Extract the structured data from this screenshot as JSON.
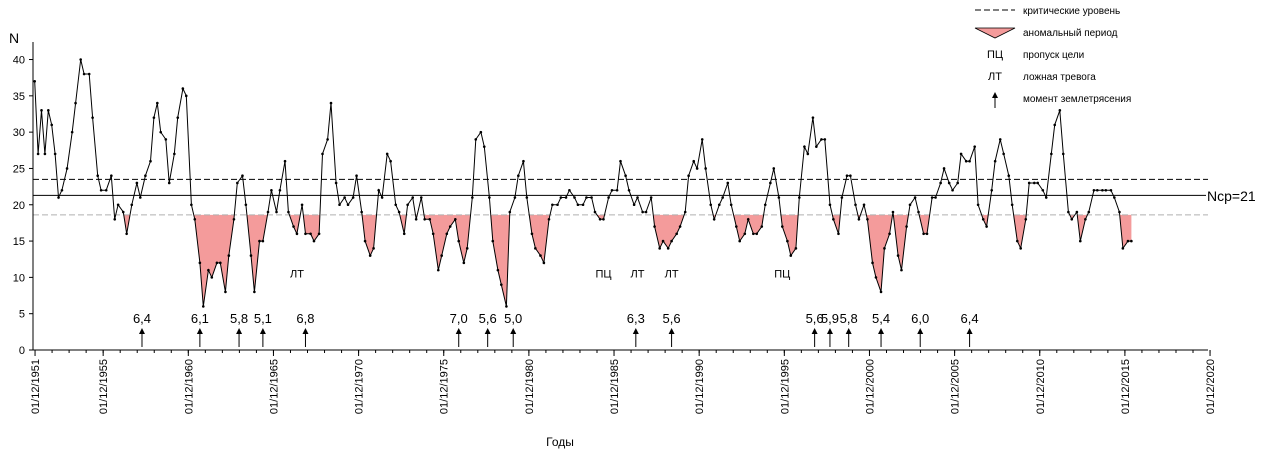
{
  "chart_data": {
    "type": "line",
    "title": "",
    "ylabel": "N",
    "xlabel": "Годы",
    "ylim": [
      0,
      42
    ],
    "yticks": [
      0,
      5,
      10,
      15,
      20,
      25,
      30,
      35,
      40
    ],
    "xlim": [
      1951.8,
      2020.8
    ],
    "xticks": [
      {
        "year": 1951.92,
        "label": "01/12/1951"
      },
      {
        "year": 1955.92,
        "label": "01/12/1955"
      },
      {
        "year": 1960.92,
        "label": "01/12/1960"
      },
      {
        "year": 1965.92,
        "label": "01/12/1965"
      },
      {
        "year": 1970.92,
        "label": "01/12/1970"
      },
      {
        "year": 1975.92,
        "label": "01/12/1975"
      },
      {
        "year": 1980.92,
        "label": "01/12/1980"
      },
      {
        "year": 1985.92,
        "label": "01/12/1985"
      },
      {
        "year": 1990.92,
        "label": "01/12/1990"
      },
      {
        "year": 1995.92,
        "label": "01/12/1995"
      },
      {
        "year": 2000.92,
        "label": "01/12/2000"
      },
      {
        "year": 2005.92,
        "label": "01/12/2005"
      },
      {
        "year": 2010.92,
        "label": "01/12/2010"
      },
      {
        "year": 2015.92,
        "label": "01/12/2015"
      },
      {
        "year": 2020.92,
        "label": "01/12/2020"
      }
    ],
    "grid": false,
    "legend_position": "top-right",
    "colors": {
      "line": "#000000",
      "anomaly_fill": "#f49b9b",
      "critical": "#000000",
      "lower": "#b0b0b0"
    },
    "critical_level": 23.5,
    "mean_level": 21.3,
    "mean_label": "Nср=21",
    "lower_level": 18.6,
    "series": [
      {
        "points": [
          [
            1951.9,
            37
          ],
          [
            1952.1,
            27
          ],
          [
            1952.3,
            33
          ],
          [
            1952.5,
            27
          ],
          [
            1952.7,
            33
          ],
          [
            1952.9,
            31
          ],
          [
            1953.1,
            27
          ],
          [
            1953.3,
            21
          ],
          [
            1953.5,
            22
          ],
          [
            1953.8,
            25
          ],
          [
            1954.1,
            30
          ],
          [
            1954.3,
            34
          ],
          [
            1954.6,
            40
          ],
          [
            1954.8,
            38
          ],
          [
            1955.1,
            38
          ],
          [
            1955.3,
            32
          ],
          [
            1955.6,
            24
          ],
          [
            1955.8,
            22
          ],
          [
            1956.1,
            22
          ],
          [
            1956.4,
            24
          ],
          [
            1956.6,
            18
          ],
          [
            1956.8,
            20
          ],
          [
            1957.1,
            19
          ],
          [
            1957.3,
            16
          ],
          [
            1957.6,
            20
          ],
          [
            1957.9,
            23
          ],
          [
            1958.1,
            21
          ],
          [
            1958.4,
            24
          ],
          [
            1958.7,
            26
          ],
          [
            1958.9,
            32
          ],
          [
            1959.1,
            34
          ],
          [
            1959.3,
            30
          ],
          [
            1959.6,
            29
          ],
          [
            1959.8,
            23
          ],
          [
            1960.1,
            27
          ],
          [
            1960.3,
            32
          ],
          [
            1960.6,
            36
          ],
          [
            1960.8,
            35
          ],
          [
            1961.1,
            20
          ],
          [
            1961.3,
            18
          ],
          [
            1961.6,
            12
          ],
          [
            1961.8,
            6
          ],
          [
            1962.1,
            11
          ],
          [
            1962.3,
            10
          ],
          [
            1962.6,
            12
          ],
          [
            1962.8,
            12
          ],
          [
            1963.1,
            8
          ],
          [
            1963.3,
            13
          ],
          [
            1963.6,
            18
          ],
          [
            1963.8,
            23
          ],
          [
            1964.1,
            24
          ],
          [
            1964.3,
            20
          ],
          [
            1964.6,
            13
          ],
          [
            1964.8,
            8
          ],
          [
            1965.1,
            15
          ],
          [
            1965.3,
            15
          ],
          [
            1965.6,
            19
          ],
          [
            1965.8,
            22
          ],
          [
            1966.1,
            19
          ],
          [
            1966.3,
            22
          ],
          [
            1966.6,
            26
          ],
          [
            1966.8,
            19
          ],
          [
            1967.1,
            17
          ],
          [
            1967.3,
            16
          ],
          [
            1967.6,
            20
          ],
          [
            1967.8,
            16
          ],
          [
            1968.1,
            16
          ],
          [
            1968.3,
            15
          ],
          [
            1968.6,
            16
          ],
          [
            1968.8,
            27
          ],
          [
            1969.1,
            29
          ],
          [
            1969.3,
            34
          ],
          [
            1969.6,
            23
          ],
          [
            1969.8,
            20
          ],
          [
            1970.1,
            21
          ],
          [
            1970.3,
            20
          ],
          [
            1970.6,
            21
          ],
          [
            1970.8,
            24
          ],
          [
            1971.1,
            19
          ],
          [
            1971.3,
            15
          ],
          [
            1971.6,
            13
          ],
          [
            1971.8,
            14
          ],
          [
            1972.1,
            22
          ],
          [
            1972.3,
            21
          ],
          [
            1972.6,
            27
          ],
          [
            1972.8,
            26
          ],
          [
            1973.1,
            20
          ],
          [
            1973.3,
            19
          ],
          [
            1973.6,
            16
          ],
          [
            1973.8,
            20
          ],
          [
            1974.1,
            21
          ],
          [
            1974.3,
            18
          ],
          [
            1974.6,
            21
          ],
          [
            1974.8,
            18
          ],
          [
            1975.1,
            18
          ],
          [
            1975.3,
            16
          ],
          [
            1975.6,
            11
          ],
          [
            1975.8,
            13
          ],
          [
            1976.1,
            16
          ],
          [
            1976.3,
            17
          ],
          [
            1976.6,
            18
          ],
          [
            1976.8,
            15
          ],
          [
            1977.1,
            12
          ],
          [
            1977.3,
            14
          ],
          [
            1977.6,
            21
          ],
          [
            1977.8,
            29
          ],
          [
            1978.1,
            30
          ],
          [
            1978.3,
            28
          ],
          [
            1978.6,
            21
          ],
          [
            1978.8,
            15
          ],
          [
            1979.1,
            11
          ],
          [
            1979.3,
            9
          ],
          [
            1979.6,
            6
          ],
          [
            1979.8,
            19
          ],
          [
            1980.1,
            21
          ],
          [
            1980.3,
            24
          ],
          [
            1980.6,
            26
          ],
          [
            1980.8,
            21
          ],
          [
            1981.1,
            16
          ],
          [
            1981.3,
            14
          ],
          [
            1981.6,
            13
          ],
          [
            1981.8,
            12
          ],
          [
            1982.1,
            18
          ],
          [
            1982.3,
            20
          ],
          [
            1982.6,
            20
          ],
          [
            1982.8,
            21
          ],
          [
            1983.1,
            21
          ],
          [
            1983.3,
            22
          ],
          [
            1983.6,
            21
          ],
          [
            1983.8,
            20
          ],
          [
            1984.1,
            20
          ],
          [
            1984.3,
            21
          ],
          [
            1984.6,
            21
          ],
          [
            1984.8,
            19
          ],
          [
            1985.1,
            18
          ],
          [
            1985.3,
            18
          ],
          [
            1985.6,
            21
          ],
          [
            1985.8,
            22
          ],
          [
            1986.1,
            22
          ],
          [
            1986.3,
            26
          ],
          [
            1986.6,
            24
          ],
          [
            1986.8,
            22
          ],
          [
            1987.1,
            20
          ],
          [
            1987.3,
            21
          ],
          [
            1987.6,
            19
          ],
          [
            1987.8,
            19
          ],
          [
            1988.1,
            21
          ],
          [
            1988.3,
            17
          ],
          [
            1988.6,
            14
          ],
          [
            1988.8,
            15
          ],
          [
            1989.1,
            14
          ],
          [
            1989.3,
            15
          ],
          [
            1989.6,
            16
          ],
          [
            1989.8,
            17
          ],
          [
            1990.1,
            19
          ],
          [
            1990.3,
            24
          ],
          [
            1990.6,
            26
          ],
          [
            1990.8,
            25
          ],
          [
            1991.1,
            29
          ],
          [
            1991.3,
            25
          ],
          [
            1991.6,
            20
          ],
          [
            1991.8,
            18
          ],
          [
            1992.1,
            20
          ],
          [
            1992.3,
            21
          ],
          [
            1992.6,
            23
          ],
          [
            1992.8,
            20
          ],
          [
            1993.1,
            17
          ],
          [
            1993.3,
            15
          ],
          [
            1993.6,
            16
          ],
          [
            1993.8,
            18
          ],
          [
            1994.1,
            16
          ],
          [
            1994.3,
            16
          ],
          [
            1994.6,
            17
          ],
          [
            1994.8,
            20
          ],
          [
            1995.1,
            23
          ],
          [
            1995.3,
            25
          ],
          [
            1995.6,
            21
          ],
          [
            1995.8,
            17
          ],
          [
            1996.1,
            15
          ],
          [
            1996.3,
            13
          ],
          [
            1996.6,
            14
          ],
          [
            1996.8,
            21
          ],
          [
            1997.1,
            28
          ],
          [
            1997.3,
            27
          ],
          [
            1997.6,
            32
          ],
          [
            1997.8,
            28
          ],
          [
            1998.1,
            29
          ],
          [
            1998.3,
            29
          ],
          [
            1998.6,
            20
          ],
          [
            1998.8,
            18
          ],
          [
            1999.1,
            16
          ],
          [
            1999.3,
            21
          ],
          [
            1999.6,
            24
          ],
          [
            1999.8,
            24
          ],
          [
            2000.1,
            20
          ],
          [
            2000.3,
            18
          ],
          [
            2000.6,
            20
          ],
          [
            2000.8,
            18
          ],
          [
            2001.1,
            12
          ],
          [
            2001.3,
            10
          ],
          [
            2001.6,
            8
          ],
          [
            2001.8,
            14
          ],
          [
            2002.1,
            16
          ],
          [
            2002.3,
            19
          ],
          [
            2002.6,
            13
          ],
          [
            2002.8,
            11
          ],
          [
            2003.1,
            17
          ],
          [
            2003.3,
            20
          ],
          [
            2003.6,
            21
          ],
          [
            2003.8,
            19
          ],
          [
            2004.1,
            16
          ],
          [
            2004.3,
            16
          ],
          [
            2004.6,
            21
          ],
          [
            2004.8,
            21
          ],
          [
            2005.1,
            23
          ],
          [
            2005.3,
            25
          ],
          [
            2005.6,
            23
          ],
          [
            2005.8,
            22
          ],
          [
            2006.1,
            23
          ],
          [
            2006.3,
            27
          ],
          [
            2006.6,
            26
          ],
          [
            2006.8,
            26
          ],
          [
            2007.1,
            28
          ],
          [
            2007.3,
            20
          ],
          [
            2007.6,
            18
          ],
          [
            2007.8,
            17
          ],
          [
            2008.1,
            22
          ],
          [
            2008.3,
            26
          ],
          [
            2008.6,
            29
          ],
          [
            2008.8,
            27
          ],
          [
            2009.1,
            24
          ],
          [
            2009.3,
            20
          ],
          [
            2009.6,
            15
          ],
          [
            2009.8,
            14
          ],
          [
            2010.1,
            18
          ],
          [
            2010.3,
            23
          ],
          [
            2010.6,
            23
          ],
          [
            2010.8,
            23
          ],
          [
            2011.1,
            22
          ],
          [
            2011.3,
            21
          ],
          [
            2011.6,
            27
          ],
          [
            2011.8,
            31
          ],
          [
            2012.1,
            33
          ],
          [
            2012.3,
            27
          ],
          [
            2012.6,
            19
          ],
          [
            2012.8,
            18
          ],
          [
            2013.1,
            19
          ],
          [
            2013.3,
            15
          ],
          [
            2013.6,
            18
          ],
          [
            2013.8,
            19
          ],
          [
            2014.1,
            22
          ],
          [
            2014.3,
            22
          ],
          [
            2014.6,
            22
          ],
          [
            2014.8,
            22
          ],
          [
            2015.1,
            22
          ],
          [
            2015.3,
            21
          ],
          [
            2015.6,
            19
          ],
          [
            2015.8,
            14
          ],
          [
            2016.1,
            15
          ],
          [
            2016.3,
            15
          ]
        ]
      }
    ],
    "earthquakes": [
      {
        "year": 1958.2,
        "magnitude": "6,4"
      },
      {
        "year": 1961.6,
        "magnitude": "6,1"
      },
      {
        "year": 1963.9,
        "magnitude": "5,8"
      },
      {
        "year": 1965.3,
        "magnitude": "5,1"
      },
      {
        "year": 1967.8,
        "magnitude": "6,8"
      },
      {
        "year": 1976.8,
        "magnitude": "7,0"
      },
      {
        "year": 1978.5,
        "magnitude": "5,6"
      },
      {
        "year": 1980.0,
        "magnitude": "5,0"
      },
      {
        "year": 1987.2,
        "magnitude": "6,3"
      },
      {
        "year": 1989.3,
        "magnitude": "5,6"
      },
      {
        "year": 1997.7,
        "magnitude": "5,6"
      },
      {
        "year": 1998.6,
        "magnitude": "5,9"
      },
      {
        "year": 1999.7,
        "magnitude": "5,8"
      },
      {
        "year": 2001.6,
        "magnitude": "5,4"
      },
      {
        "year": 2003.9,
        "magnitude": "6,0"
      },
      {
        "year": 2006.8,
        "magnitude": "6,4"
      }
    ],
    "annotations": [
      {
        "year": 1967.3,
        "y": 10,
        "text": "ЛТ"
      },
      {
        "year": 1985.3,
        "y": 10,
        "text": "ПЦ"
      },
      {
        "year": 1987.3,
        "y": 10,
        "text": "ЛТ"
      },
      {
        "year": 1989.3,
        "y": 10,
        "text": "ЛТ"
      },
      {
        "year": 1995.8,
        "y": 10,
        "text": "ПЦ"
      }
    ],
    "legend": [
      {
        "symbol": "dashed-line",
        "label": "критические уровень"
      },
      {
        "symbol": "anomaly-fill",
        "label": "аномальный период"
      },
      {
        "symbol": "text-ПЦ",
        "label": "пропуск цели"
      },
      {
        "symbol": "text-ЛТ",
        "label": "ложная тревога"
      },
      {
        "symbol": "arrow-up",
        "label": "момент землетрясения"
      }
    ]
  }
}
